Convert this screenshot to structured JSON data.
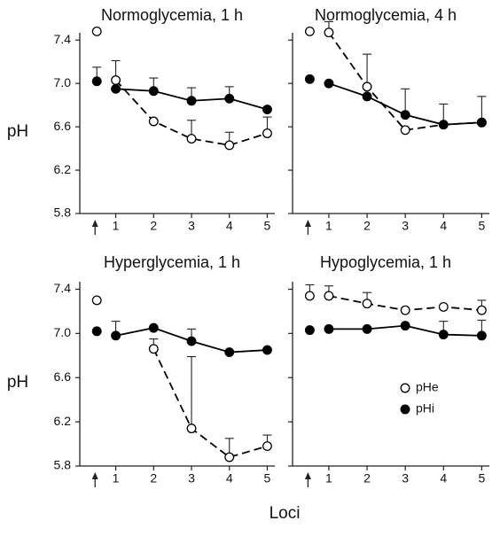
{
  "xlabel": "Loci",
  "chart_data": [
    {
      "type": "line",
      "title": "Normoglycemia, 1 h",
      "ylabel": "pH",
      "ytick_labels": true,
      "x": [
        0.5,
        1,
        2,
        3,
        4,
        5
      ],
      "xlim": [
        0.05,
        5.2
      ],
      "xticks": [
        1,
        2,
        3,
        4,
        5
      ],
      "ylim": [
        5.8,
        7.5
      ],
      "yticks": [
        5.8,
        6.2,
        6.6,
        {
          "value": 7.0,
          "label": "7.0"
        },
        7.4
      ],
      "series": [
        {
          "name": "pHe",
          "color": "#000000",
          "marker": "open",
          "dashed": true,
          "values": [
            7.48,
            7.03,
            6.65,
            6.49,
            6.43,
            6.54
          ],
          "errors": [
            null,
            0.18,
            null,
            0.17,
            0.12,
            0.15
          ]
        },
        {
          "name": "pHi",
          "color": "#000000",
          "marker": "filled",
          "dashed": false,
          "values": [
            7.02,
            6.95,
            6.93,
            6.84,
            6.86,
            6.76
          ],
          "errors": [
            0.13,
            null,
            0.12,
            0.12,
            0.11,
            null
          ]
        }
      ]
    },
    {
      "type": "line",
      "title": "Normoglycemia, 4 h",
      "ytick_labels": false,
      "x": [
        0.5,
        1,
        2,
        3,
        4,
        5
      ],
      "xlim": [
        0.05,
        5.2
      ],
      "xticks": [
        1,
        2,
        3,
        4,
        5
      ],
      "ylim": [
        5.8,
        7.5
      ],
      "yticks": [
        5.8,
        6.2,
        6.6,
        7.0,
        7.4
      ],
      "series": [
        {
          "name": "pHe",
          "color": "#000000",
          "marker": "open",
          "dashed": true,
          "values": [
            7.48,
            7.47,
            6.97,
            6.57,
            6.62,
            6.64
          ],
          "errors": [
            null,
            0.1,
            0.3,
            null,
            null,
            null
          ]
        },
        {
          "name": "pHi",
          "color": "#000000",
          "marker": "filled",
          "dashed": false,
          "values": [
            7.04,
            7.0,
            6.88,
            6.71,
            6.62,
            6.64
          ],
          "errors": [
            null,
            null,
            null,
            0.24,
            0.19,
            0.24
          ]
        }
      ]
    },
    {
      "type": "line",
      "title": "Hyperglycemia, 1 h",
      "ylabel": "pH",
      "ytick_labels": true,
      "x": [
        0.5,
        1,
        2,
        3,
        4,
        5
      ],
      "xlim": [
        0.05,
        5.2
      ],
      "xticks": [
        1,
        2,
        3,
        4,
        5
      ],
      "ylim": [
        5.8,
        7.5
      ],
      "yticks": [
        5.8,
        6.2,
        6.6,
        {
          "value": 7.0,
          "label": "7.0"
        },
        7.4
      ],
      "series": [
        {
          "name": "pHe",
          "color": "#000000",
          "marker": "open",
          "dashed": true,
          "values": [
            7.3,
            null,
            6.86,
            6.14,
            5.88,
            5.98
          ],
          "errors": [
            null,
            null,
            0.09,
            0.65,
            0.17,
            0.1
          ]
        },
        {
          "name": "pHi",
          "color": "#000000",
          "marker": "filled",
          "dashed": false,
          "values": [
            7.02,
            6.98,
            7.05,
            6.93,
            6.83,
            6.85
          ],
          "errors": [
            null,
            0.13,
            null,
            0.11,
            null,
            null
          ]
        }
      ]
    },
    {
      "type": "line",
      "title": "Hypoglycemia, 1 h",
      "ytick_labels": false,
      "legend": "lower right",
      "x": [
        0.5,
        1,
        2,
        3,
        4,
        5
      ],
      "xlim": [
        0.05,
        5.2
      ],
      "xticks": [
        1,
        2,
        3,
        4,
        5
      ],
      "ylim": [
        5.8,
        7.5
      ],
      "yticks": [
        5.8,
        6.2,
        6.6,
        7.0,
        7.4
      ],
      "series": [
        {
          "name": "pHe",
          "color": "#000000",
          "marker": "open",
          "dashed": true,
          "values": [
            7.34,
            7.34,
            7.27,
            7.21,
            7.24,
            7.21
          ],
          "errors": [
            0.1,
            0.09,
            0.1,
            null,
            null,
            0.09
          ]
        },
        {
          "name": "pHi",
          "color": "#000000",
          "marker": "filled",
          "dashed": false,
          "values": [
            7.03,
            7.04,
            7.04,
            7.07,
            6.99,
            6.98
          ],
          "errors": [
            null,
            null,
            null,
            null,
            0.12,
            0.14
          ]
        }
      ]
    }
  ]
}
